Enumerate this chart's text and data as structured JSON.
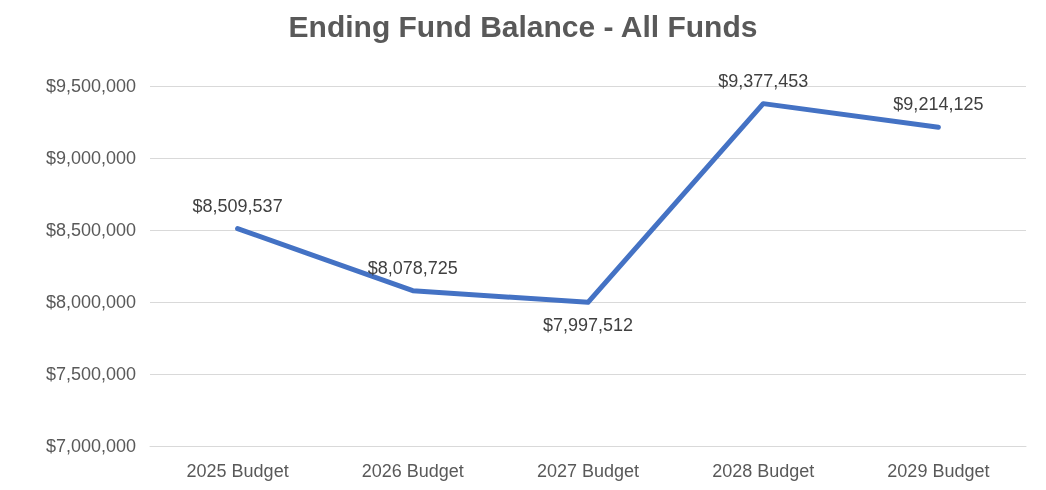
{
  "chart_data": {
    "type": "line",
    "title": "Ending Fund Balance - All Funds",
    "categories": [
      "2025 Budget",
      "2026 Budget",
      "2027 Budget",
      "2028 Budget",
      "2029 Budget"
    ],
    "series": [
      {
        "color": "#4472c4",
        "values": [
          8509537,
          8078725,
          7997512,
          9377453,
          9214125
        ],
        "value_labels": [
          "$8,509,537",
          "$8,078,725",
          "$7,997,512",
          "$9,377,453",
          "$9,214,125"
        ]
      }
    ],
    "ylim": [
      7000000,
      9500000
    ],
    "yticks": [
      {
        "value": 7000000,
        "label": "$7,000,000"
      },
      {
        "value": 7500000,
        "label": "$7,500,000"
      },
      {
        "value": 8000000,
        "label": "$8,000,000"
      },
      {
        "value": 8500000,
        "label": "$8,500,000"
      },
      {
        "value": 9000000,
        "label": "$9,000,000"
      },
      {
        "value": 9500000,
        "label": "$9,500,000"
      }
    ],
    "grid": "y",
    "marker": "none",
    "line_style": "solid"
  }
}
